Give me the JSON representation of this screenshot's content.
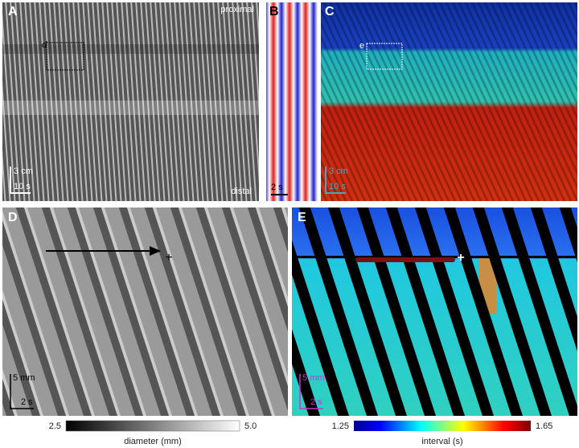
{
  "panels": {
    "A": {
      "label": "A",
      "top": "proximal",
      "bottom": "distal",
      "box": "d",
      "scale_y": "3 cm",
      "scale_x": "10 s"
    },
    "B": {
      "label": "B",
      "scale_x": "2 s"
    },
    "C": {
      "label": "C",
      "box": "e",
      "scale_y": "3 cm",
      "scale_x": "10 s"
    },
    "D": {
      "label": "D",
      "marker": "+",
      "scale_y": "5 mm",
      "scale_x": "2 s"
    },
    "E": {
      "label": "E",
      "marker": "+",
      "scale_y": "5 mm",
      "scale_x": "2 s"
    }
  },
  "colorbars": [
    {
      "min": "2.5",
      "max": "5.0",
      "label": "diameter (mm)"
    },
    {
      "min": "1.25",
      "max": "1.65",
      "label": "interval (s)"
    }
  ]
}
